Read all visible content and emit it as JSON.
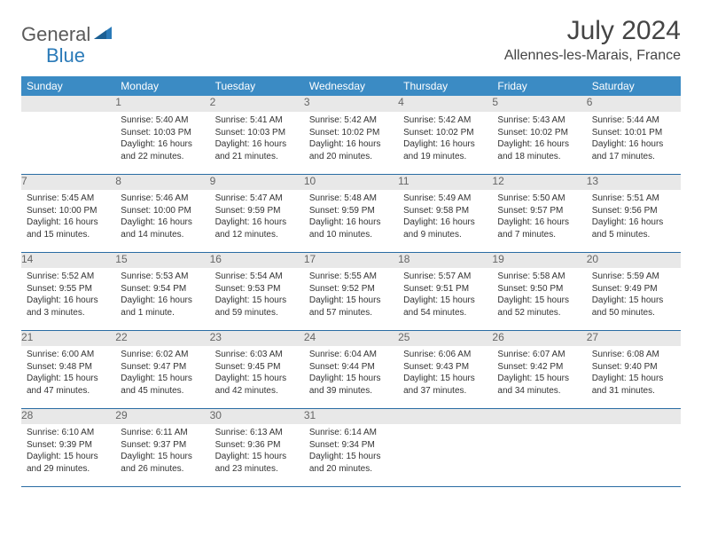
{
  "logo": {
    "text1": "General",
    "text2": "Blue"
  },
  "title": "July 2024",
  "location": "Allennes-les-Marais, France",
  "colors": {
    "header_bg": "#3b8bc4",
    "header_text": "#ffffff",
    "daynum_bg": "#e8e8e8",
    "daynum_text": "#666666",
    "cell_text": "#333333",
    "rule": "#2a6ca3",
    "logo_gray": "#5a5a5a",
    "logo_blue": "#2a7ab8"
  },
  "day_headers": [
    "Sunday",
    "Monday",
    "Tuesday",
    "Wednesday",
    "Thursday",
    "Friday",
    "Saturday"
  ],
  "weeks": [
    [
      null,
      {
        "n": "1",
        "sr": "5:40 AM",
        "ss": "10:03 PM",
        "dl": "16 hours and 22 minutes."
      },
      {
        "n": "2",
        "sr": "5:41 AM",
        "ss": "10:03 PM",
        "dl": "16 hours and 21 minutes."
      },
      {
        "n": "3",
        "sr": "5:42 AM",
        "ss": "10:02 PM",
        "dl": "16 hours and 20 minutes."
      },
      {
        "n": "4",
        "sr": "5:42 AM",
        "ss": "10:02 PM",
        "dl": "16 hours and 19 minutes."
      },
      {
        "n": "5",
        "sr": "5:43 AM",
        "ss": "10:02 PM",
        "dl": "16 hours and 18 minutes."
      },
      {
        "n": "6",
        "sr": "5:44 AM",
        "ss": "10:01 PM",
        "dl": "16 hours and 17 minutes."
      }
    ],
    [
      {
        "n": "7",
        "sr": "5:45 AM",
        "ss": "10:00 PM",
        "dl": "16 hours and 15 minutes."
      },
      {
        "n": "8",
        "sr": "5:46 AM",
        "ss": "10:00 PM",
        "dl": "16 hours and 14 minutes."
      },
      {
        "n": "9",
        "sr": "5:47 AM",
        "ss": "9:59 PM",
        "dl": "16 hours and 12 minutes."
      },
      {
        "n": "10",
        "sr": "5:48 AM",
        "ss": "9:59 PM",
        "dl": "16 hours and 10 minutes."
      },
      {
        "n": "11",
        "sr": "5:49 AM",
        "ss": "9:58 PM",
        "dl": "16 hours and 9 minutes."
      },
      {
        "n": "12",
        "sr": "5:50 AM",
        "ss": "9:57 PM",
        "dl": "16 hours and 7 minutes."
      },
      {
        "n": "13",
        "sr": "5:51 AM",
        "ss": "9:56 PM",
        "dl": "16 hours and 5 minutes."
      }
    ],
    [
      {
        "n": "14",
        "sr": "5:52 AM",
        "ss": "9:55 PM",
        "dl": "16 hours and 3 minutes."
      },
      {
        "n": "15",
        "sr": "5:53 AM",
        "ss": "9:54 PM",
        "dl": "16 hours and 1 minute."
      },
      {
        "n": "16",
        "sr": "5:54 AM",
        "ss": "9:53 PM",
        "dl": "15 hours and 59 minutes."
      },
      {
        "n": "17",
        "sr": "5:55 AM",
        "ss": "9:52 PM",
        "dl": "15 hours and 57 minutes."
      },
      {
        "n": "18",
        "sr": "5:57 AM",
        "ss": "9:51 PM",
        "dl": "15 hours and 54 minutes."
      },
      {
        "n": "19",
        "sr": "5:58 AM",
        "ss": "9:50 PM",
        "dl": "15 hours and 52 minutes."
      },
      {
        "n": "20",
        "sr": "5:59 AM",
        "ss": "9:49 PM",
        "dl": "15 hours and 50 minutes."
      }
    ],
    [
      {
        "n": "21",
        "sr": "6:00 AM",
        "ss": "9:48 PM",
        "dl": "15 hours and 47 minutes."
      },
      {
        "n": "22",
        "sr": "6:02 AM",
        "ss": "9:47 PM",
        "dl": "15 hours and 45 minutes."
      },
      {
        "n": "23",
        "sr": "6:03 AM",
        "ss": "9:45 PM",
        "dl": "15 hours and 42 minutes."
      },
      {
        "n": "24",
        "sr": "6:04 AM",
        "ss": "9:44 PM",
        "dl": "15 hours and 39 minutes."
      },
      {
        "n": "25",
        "sr": "6:06 AM",
        "ss": "9:43 PM",
        "dl": "15 hours and 37 minutes."
      },
      {
        "n": "26",
        "sr": "6:07 AM",
        "ss": "9:42 PM",
        "dl": "15 hours and 34 minutes."
      },
      {
        "n": "27",
        "sr": "6:08 AM",
        "ss": "9:40 PM",
        "dl": "15 hours and 31 minutes."
      }
    ],
    [
      {
        "n": "28",
        "sr": "6:10 AM",
        "ss": "9:39 PM",
        "dl": "15 hours and 29 minutes."
      },
      {
        "n": "29",
        "sr": "6:11 AM",
        "ss": "9:37 PM",
        "dl": "15 hours and 26 minutes."
      },
      {
        "n": "30",
        "sr": "6:13 AM",
        "ss": "9:36 PM",
        "dl": "15 hours and 23 minutes."
      },
      {
        "n": "31",
        "sr": "6:14 AM",
        "ss": "9:34 PM",
        "dl": "15 hours and 20 minutes."
      },
      null,
      null,
      null
    ]
  ],
  "labels": {
    "sunrise": "Sunrise:",
    "sunset": "Sunset:",
    "daylight": "Daylight:"
  }
}
